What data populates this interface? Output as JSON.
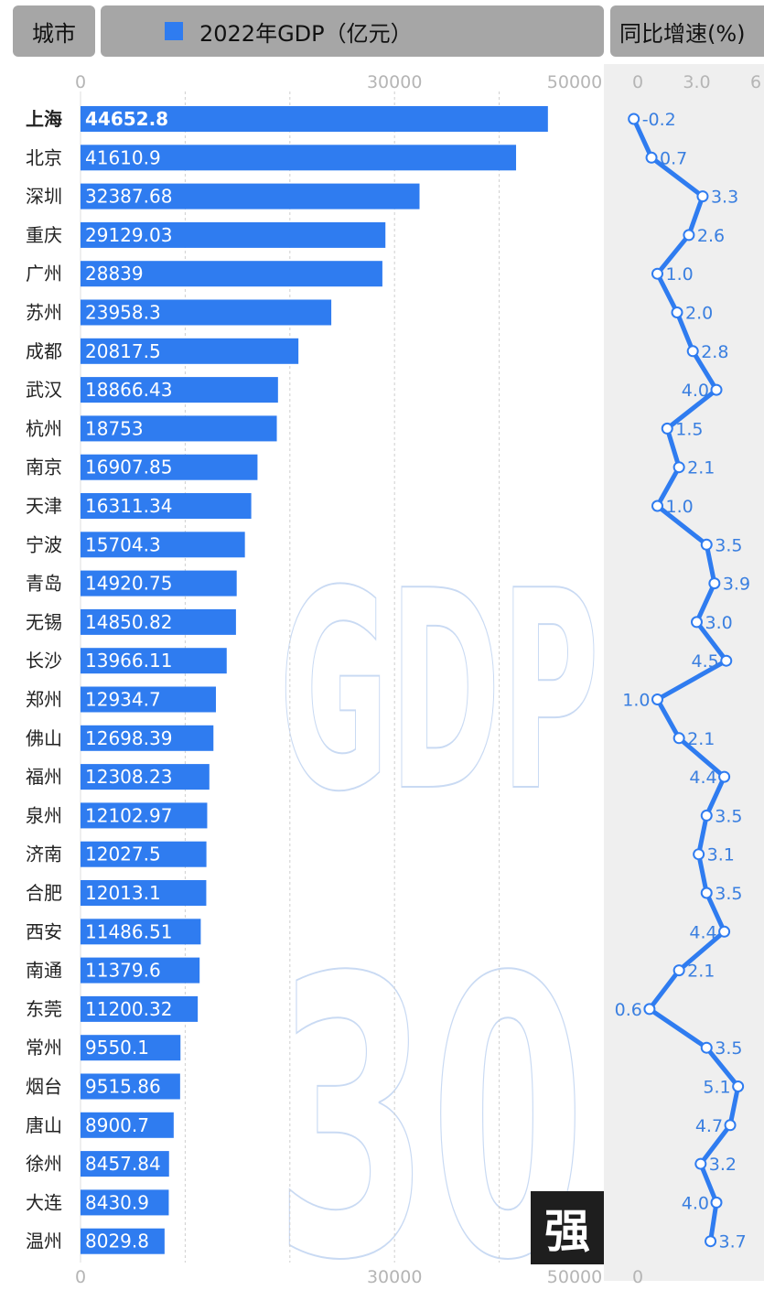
{
  "header": {
    "city_label": "城市",
    "gdp_label": "2022年GDP（亿元）",
    "growth_label": "同比增速(%)"
  },
  "watermark": {
    "big_text": "GDP",
    "number_text": "30",
    "badge_text": "强"
  },
  "colors": {
    "bar": "#2f7cf0",
    "line": "#2f7cf0",
    "header_bg": "#a6a6a6",
    "growth_bg": "#efefef"
  },
  "chart_data": [
    {
      "type": "bar",
      "orientation": "horizontal",
      "title": "2022年GDP（亿元）",
      "categories": [
        "上海",
        "北京",
        "深圳",
        "重庆",
        "广州",
        "苏州",
        "成都",
        "武汉",
        "杭州",
        "南京",
        "天津",
        "宁波",
        "青岛",
        "无锡",
        "长沙",
        "郑州",
        "佛山",
        "福州",
        "泉州",
        "济南",
        "合肥",
        "西安",
        "南通",
        "东莞",
        "常州",
        "烟台",
        "唐山",
        "徐州",
        "大连",
        "温州"
      ],
      "values": [
        44652.8,
        41610.9,
        32387.68,
        29129.03,
        28839,
        23958.3,
        20817.5,
        18866.43,
        18753,
        16907.85,
        16311.34,
        15704.3,
        14920.75,
        14850.82,
        13966.11,
        12934.7,
        12698.39,
        12308.23,
        12102.97,
        12027.5,
        12013.1,
        11486.51,
        11379.6,
        11200.32,
        9550.1,
        9515.86,
        8900.7,
        8457.84,
        8430.9,
        8029.8
      ],
      "value_labels": [
        "44652.8",
        "41610.9",
        "32387.68",
        "29129.03",
        "28839",
        "23958.3",
        "20817.5",
        "18866.43",
        "18753",
        "16907.85",
        "16311.34",
        "15704.3",
        "14920.75",
        "14850.82",
        "13966.11",
        "12934.7",
        "12698.39",
        "12308.23",
        "12102.97",
        "12027.5",
        "12013.1",
        "11486.51",
        "11379.6",
        "11200.32",
        "9550.1",
        "9515.86",
        "8900.7",
        "8457.84",
        "8430.9",
        "8029.8"
      ],
      "xlim": [
        0,
        50000
      ],
      "tick_labels_top": [
        "0",
        "30000",
        "50000"
      ],
      "tick_labels_bottom": [
        "0",
        "30000",
        "50000"
      ],
      "grid": true
    },
    {
      "type": "line",
      "title": "同比增速(%)",
      "categories": [
        "上海",
        "北京",
        "深圳",
        "重庆",
        "广州",
        "苏州",
        "成都",
        "武汉",
        "杭州",
        "南京",
        "天津",
        "宁波",
        "青岛",
        "无锡",
        "长沙",
        "郑州",
        "佛山",
        "福州",
        "泉州",
        "济南",
        "合肥",
        "西安",
        "南通",
        "东莞",
        "常州",
        "烟台",
        "唐山",
        "徐州",
        "大连",
        "温州"
      ],
      "values": [
        -0.2,
        0.7,
        3.3,
        2.6,
        1.0,
        2.0,
        2.8,
        4.0,
        1.5,
        2.1,
        1.0,
        3.5,
        3.9,
        3.0,
        4.5,
        1.0,
        2.1,
        4.4,
        3.5,
        3.1,
        3.5,
        4.4,
        2.1,
        0.6,
        3.5,
        5.1,
        4.7,
        3.2,
        4.0,
        3.7
      ],
      "value_labels": [
        "-0.2",
        "0.7",
        "3.3",
        "2.6",
        "1.0",
        "2.0",
        "2.8",
        "4.0",
        "1.5",
        "2.1",
        "1.0",
        "3.5",
        "3.9",
        "3.0",
        "4.5",
        "1.0",
        "2.1",
        "4.4",
        "3.5",
        "3.1",
        "3.5",
        "4.4",
        "2.1",
        "0.6",
        "3.5",
        "5.1",
        "4.7",
        "3.2",
        "4.0",
        "3.7"
      ],
      "xlim": [
        -0.5,
        5.3
      ],
      "tick_labels_top": [
        "0",
        "3.0",
        "6"
      ],
      "tick_labels_bottom": [
        "0"
      ]
    }
  ]
}
